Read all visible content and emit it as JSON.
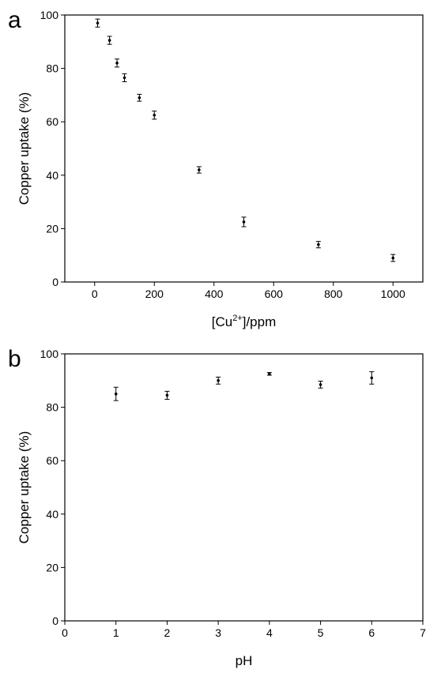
{
  "chart_data": [
    {
      "type": "scatter",
      "panel": "a",
      "y_label": "Copper uptake (%)",
      "x_label": "[Cu",
      "x_label_sup": "2+",
      "x_label_end": "]/ppm",
      "x": [
        10,
        50,
        75,
        100,
        150,
        200,
        350,
        500,
        750,
        1000
      ],
      "values": [
        97,
        90.5,
        82,
        76.5,
        69,
        62.5,
        42,
        22.5,
        14,
        9
      ],
      "errors": [
        1.5,
        1.5,
        1.5,
        1.5,
        1.3,
        1.5,
        1.2,
        1.8,
        1.2,
        1.3
      ],
      "color": "#000000",
      "xlim": [
        -100,
        1100
      ],
      "xticks": [
        0,
        200,
        400,
        600,
        800,
        1000
      ],
      "ylim": [
        0,
        100
      ],
      "yticks": [
        0,
        20,
        40,
        60,
        80,
        100
      ]
    },
    {
      "type": "scatter",
      "panel": "b",
      "y_label": "Copper uptake (%)",
      "x_label": "pH",
      "x": [
        1,
        2,
        3,
        4,
        5,
        6
      ],
      "values": [
        85,
        84.5,
        90,
        92.5,
        88.5,
        91
      ],
      "errors": [
        2.5,
        1.5,
        1.3,
        0.5,
        1.3,
        2.3
      ],
      "color": "#000000",
      "xlim": [
        0,
        7
      ],
      "xticks": [
        0,
        1,
        2,
        3,
        4,
        5,
        6,
        7
      ],
      "ylim": [
        0,
        100
      ],
      "yticks": [
        0,
        20,
        40,
        60,
        80,
        100
      ]
    }
  ]
}
